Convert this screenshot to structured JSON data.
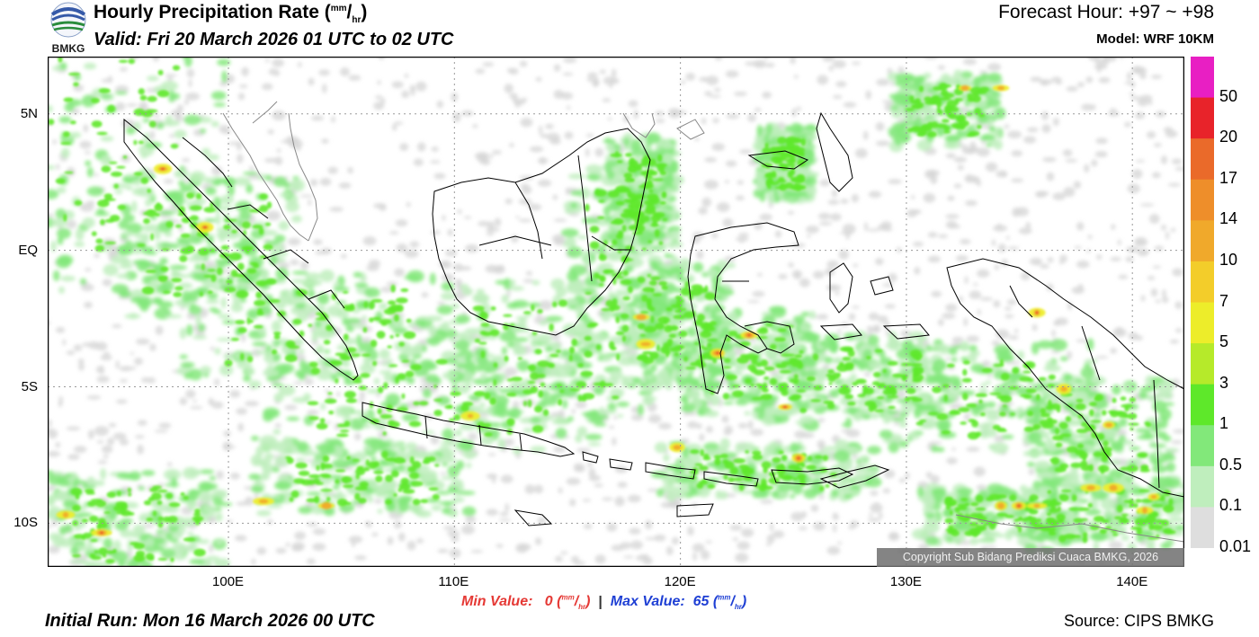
{
  "header": {
    "title_main": "Hourly Precipitation Rate (",
    "title_unit_num": "mm",
    "title_unit_den": "hr",
    "title_close": ")",
    "valid": "Valid: Fri 20 March 2026 01 UTC to 02 UTC",
    "forecast_hour": "Forecast Hour: +97 ~ +98",
    "model": "Model: WRF 10KM",
    "logo_text": "BMKG"
  },
  "axes": {
    "lon_labels": [
      "100E",
      "110E",
      "120E",
      "130E",
      "140E"
    ],
    "lat_labels": [
      "5N",
      "EQ",
      "5S",
      "10S"
    ]
  },
  "legend": {
    "values": [
      "50",
      "20",
      "17",
      "14",
      "10",
      "7",
      "5",
      "3",
      "1",
      "0.5",
      "0.1",
      "0.01"
    ],
    "colors": [
      "#e81fc3",
      "#e8232a",
      "#ea6a2a",
      "#ee8e2a",
      "#f0a92b",
      "#f3cd2a",
      "#eded2a",
      "#b6ea2a",
      "#5ee82a",
      "#82e87a",
      "#bfeebd",
      "#dedede"
    ]
  },
  "footer": {
    "min_label": "Min Value:",
    "min_value": "0",
    "max_label": "Max Value:",
    "max_value": "65",
    "unit_num": "mm",
    "unit_den": "hr",
    "initial_run": "Initial Run: Mon 16 March 2026 00 UTC",
    "source": "Source: CIPS BMKG",
    "copyright": "Copyright Sub Bidang Prediksi Cuaca BMKG, 2026"
  },
  "map": {
    "lon_range": [
      92,
      142.3
    ],
    "lat_range": [
      7.1,
      -11.6
    ]
  }
}
